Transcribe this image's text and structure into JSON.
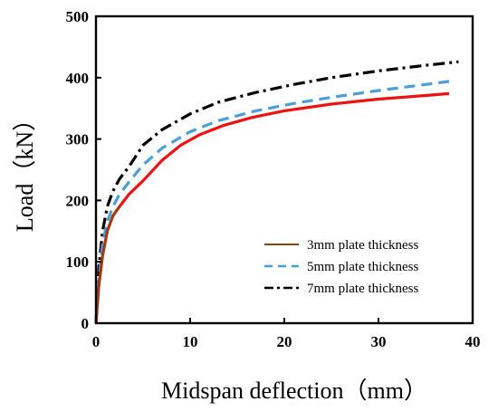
{
  "chart_data": {
    "type": "line",
    "xlabel": "Midspan deflection（mm）",
    "ylabel": "Load（kN）",
    "xlim": [
      0,
      40
    ],
    "ylim": [
      0,
      500
    ],
    "xticks": [
      0,
      10,
      20,
      30,
      40
    ],
    "yticks": [
      0,
      100,
      200,
      300,
      400,
      500
    ],
    "grid": false,
    "legend_position": "bottom-right",
    "series": [
      {
        "name": "3mm plate thickness",
        "color": "#ee1111",
        "near_origin_color": "#8b4513",
        "dash": "solid",
        "x": [
          0,
          0.3,
          0.7,
          1.2,
          1.8,
          2.5,
          3.5,
          5.0,
          7.0,
          9.0,
          11.0,
          13.5,
          16.5,
          20.0,
          25.0,
          30.0,
          35.0,
          37.5
        ],
        "y": [
          0,
          60,
          110,
          150,
          175,
          190,
          210,
          232,
          265,
          290,
          307,
          322,
          335,
          346,
          357,
          365,
          371,
          374
        ]
      },
      {
        "name": "5mm plate thickness",
        "color": "#4a9fd8",
        "dash": "dashed",
        "x": [
          0,
          0.3,
          0.7,
          1.2,
          1.8,
          2.5,
          3.5,
          5.0,
          7.0,
          10.0,
          13.0,
          17.0,
          21.0,
          25.0,
          30.0,
          35.0,
          38.0
        ],
        "y": [
          0,
          70,
          130,
          165,
          190,
          210,
          230,
          258,
          285,
          312,
          330,
          346,
          358,
          368,
          379,
          389,
          395
        ]
      },
      {
        "name": "7mm plate thickness",
        "color": "#000000",
        "dash": "dash-dot",
        "x": [
          0,
          0.3,
          0.7,
          1.2,
          1.8,
          2.5,
          3.5,
          5.0,
          7.0,
          10.0,
          13.0,
          17.0,
          21.0,
          25.0,
          30.0,
          35.0,
          38.5
        ],
        "y": [
          0,
          90,
          150,
          190,
          215,
          235,
          255,
          290,
          315,
          341,
          360,
          376,
          389,
          400,
          411,
          420,
          426
        ]
      }
    ]
  }
}
